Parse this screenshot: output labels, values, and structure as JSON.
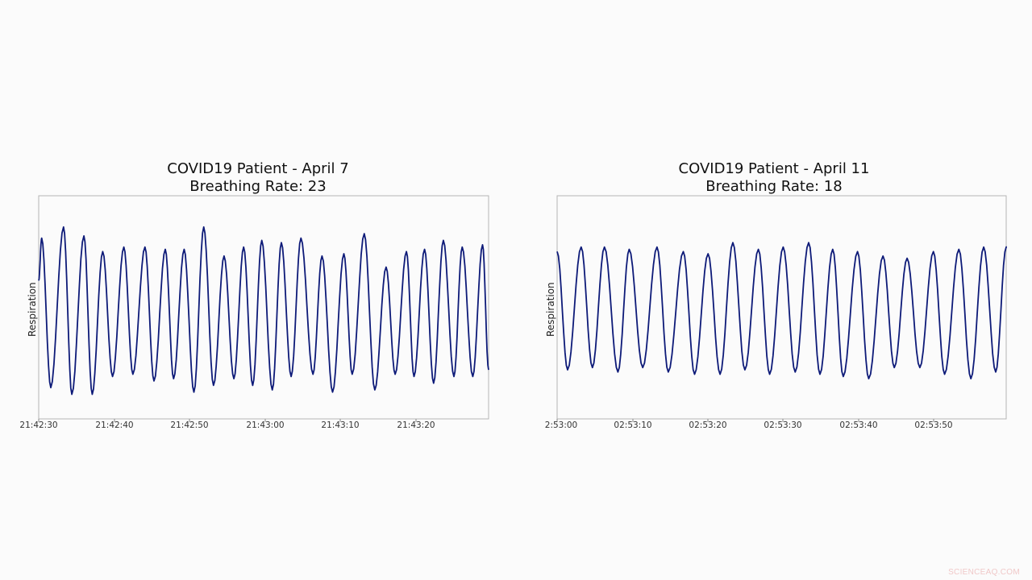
{
  "chart_data": [
    {
      "type": "line",
      "title": "COVID19 Patient - April 7",
      "subtitle": "Breathing Rate: 23",
      "xlabel": "",
      "ylabel": "Respiration",
      "x_tick_labels": [
        "21:42:30",
        "21:42:40",
        "21:42:50",
        "21:43:00",
        "21:43:10",
        "21:43:20"
      ],
      "x_range": [
        "21:42:30",
        "21:43:29"
      ],
      "y_ticks_visible": false,
      "grid": false,
      "line_color": "#0d1a78",
      "breathing_rate": 23,
      "series": [
        {
          "name": "Respiration",
          "description": "Oscillating respiration waveform, ~23 breaths per minute; normalized amplitude 0 (bottom) to 1 (top of axes)",
          "peaks_sec_norm": [
            [
              0.4,
              0.81
            ],
            [
              3.3,
              0.86
            ],
            [
              6.0,
              0.82
            ],
            [
              8.5,
              0.75
            ],
            [
              11.3,
              0.77
            ],
            [
              14.1,
              0.77
            ],
            [
              16.8,
              0.76
            ],
            [
              19.3,
              0.76
            ],
            [
              21.9,
              0.86
            ],
            [
              24.6,
              0.73
            ],
            [
              27.2,
              0.77
            ],
            [
              29.6,
              0.8
            ],
            [
              32.2,
              0.79
            ],
            [
              34.8,
              0.81
            ],
            [
              37.6,
              0.73
            ],
            [
              40.5,
              0.74
            ],
            [
              43.2,
              0.83
            ],
            [
              46.1,
              0.68
            ],
            [
              48.8,
              0.75
            ],
            [
              51.2,
              0.76
            ],
            [
              53.7,
              0.8
            ],
            [
              56.2,
              0.77
            ],
            [
              58.9,
              0.78
            ]
          ],
          "troughs_sec_norm": [
            [
              1.6,
              0.14
            ],
            [
              4.4,
              0.11
            ],
            [
              7.1,
              0.11
            ],
            [
              9.8,
              0.19
            ],
            [
              12.5,
              0.2
            ],
            [
              15.3,
              0.17
            ],
            [
              17.9,
              0.18
            ],
            [
              20.6,
              0.12
            ],
            [
              23.2,
              0.15
            ],
            [
              25.9,
              0.18
            ],
            [
              28.4,
              0.15
            ],
            [
              31.0,
              0.13
            ],
            [
              33.5,
              0.19
            ],
            [
              36.4,
              0.2
            ],
            [
              39.0,
              0.12
            ],
            [
              41.6,
              0.2
            ],
            [
              44.6,
              0.13
            ],
            [
              47.3,
              0.2
            ],
            [
              49.8,
              0.19
            ],
            [
              52.4,
              0.16
            ],
            [
              55.1,
              0.19
            ],
            [
              57.6,
              0.19
            ]
          ]
        }
      ]
    },
    {
      "type": "line",
      "title": "COVID19 Patient - April 11",
      "subtitle": "Breathing Rate: 18",
      "xlabel": "",
      "ylabel": "Respiration",
      "x_tick_labels": [
        "02:53:00",
        "02:53:10",
        "02:53:20",
        "02:53:30",
        "02:53:40",
        "02:53:50"
      ],
      "x_range": [
        "02:53:00",
        "02:53:59"
      ],
      "y_ticks_visible": false,
      "grid": false,
      "line_color": "#0d1a78",
      "breathing_rate": 18,
      "series": [
        {
          "name": "Respiration",
          "description": "Regular oscillating respiration waveform, ~18 breaths per minute; normalized amplitude 0 (bottom) to 1 (top of axes)",
          "peaks_sec_norm": [
            [
              3.2,
              0.77
            ],
            [
              6.3,
              0.77
            ],
            [
              9.6,
              0.76
            ],
            [
              13.3,
              0.77
            ],
            [
              16.8,
              0.75
            ],
            [
              20.1,
              0.74
            ],
            [
              23.4,
              0.79
            ],
            [
              26.8,
              0.76
            ],
            [
              30.1,
              0.77
            ],
            [
              33.5,
              0.79
            ],
            [
              36.7,
              0.76
            ],
            [
              40.0,
              0.75
            ],
            [
              43.4,
              0.73
            ],
            [
              46.6,
              0.72
            ],
            [
              50.1,
              0.75
            ],
            [
              53.5,
              0.76
            ],
            [
              56.8,
              0.77
            ],
            [
              59.9,
              0.77
            ]
          ],
          "troughs_sec_norm": [
            [
              1.4,
              0.22
            ],
            [
              4.7,
              0.23
            ],
            [
              8.1,
              0.21
            ],
            [
              11.4,
              0.23
            ],
            [
              14.8,
              0.21
            ],
            [
              18.3,
              0.2
            ],
            [
              21.7,
              0.2
            ],
            [
              25.0,
              0.22
            ],
            [
              28.3,
              0.2
            ],
            [
              31.7,
              0.21
            ],
            [
              35.0,
              0.2
            ],
            [
              38.1,
              0.19
            ],
            [
              41.5,
              0.18
            ],
            [
              44.9,
              0.23
            ],
            [
              48.3,
              0.23
            ],
            [
              51.6,
              0.2
            ],
            [
              55.1,
              0.18
            ],
            [
              58.4,
              0.21
            ]
          ]
        }
      ]
    }
  ],
  "charts": {
    "left": {
      "title": "COVID19 Patient - April 7",
      "subtitle": "Breathing Rate: 23",
      "ylabel": "Respiration",
      "ticks": [
        "21:42:30",
        "21:42:40",
        "21:42:50",
        "21:43:00",
        "21:43:10",
        "21:43:20"
      ]
    },
    "right": {
      "title": "COVID19 Patient - April 11",
      "subtitle": "Breathing Rate: 18",
      "ylabel": "Respiration",
      "ticks": [
        "2:53:00",
        "02:53:10",
        "02:53:20",
        "02:53:30",
        "02:53:40",
        "02:53:50"
      ]
    }
  },
  "watermark": "SCIENCEAQ.COM",
  "colors": {
    "background": "#fbfbfb",
    "line": "#0d1a78",
    "axes_border": "#b0b0b0",
    "watermark": "#f0c8c8"
  }
}
